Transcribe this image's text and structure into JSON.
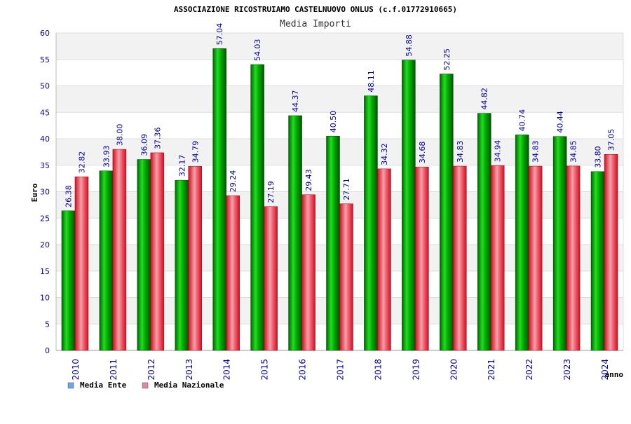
{
  "chart_data": {
    "type": "bar",
    "title": "ASSOCIAZIONE RICOSTRUIAMO CASTELNUOVO ONLUS (c.f.01772910665)",
    "subtitle": "Media Importi",
    "xlabel": "anno",
    "ylabel": "Euro",
    "ylim": [
      0,
      60
    ],
    "yticks": [
      0,
      5,
      10,
      15,
      20,
      25,
      30,
      35,
      40,
      45,
      50,
      55,
      60
    ],
    "grid": true,
    "legend_position": "bottom-left",
    "categories": [
      "2010",
      "2011",
      "2012",
      "2013",
      "2014",
      "2015",
      "2016",
      "2017",
      "2018",
      "2019",
      "2020",
      "2021",
      "2022",
      "2023",
      "2024"
    ],
    "series": [
      {
        "name": "Media Ente",
        "color": "#00bb00",
        "legend_color": "#66a8e8",
        "values": [
          26.38,
          33.93,
          36.09,
          32.17,
          57.04,
          54.03,
          44.37,
          40.5,
          48.11,
          54.88,
          52.25,
          44.82,
          40.74,
          40.44,
          33.8
        ],
        "labels": [
          "26.38",
          "33.93",
          "36.09",
          "32.17",
          "57.04",
          "54.03",
          "44.37",
          "40.50",
          "48.11",
          "54.88",
          "52.25",
          "44.82",
          "40.74",
          "40.44",
          "33.80"
        ]
      },
      {
        "name": "Media Nazionale",
        "color": "#ee3344",
        "legend_color": "#dd88aa",
        "values": [
          32.82,
          38.0,
          37.36,
          34.79,
          29.24,
          27.19,
          29.43,
          27.71,
          34.32,
          34.68,
          34.83,
          34.94,
          34.83,
          34.85,
          37.05
        ],
        "labels": [
          "32.82",
          "38.00",
          "37.36",
          "34.79",
          "29.24",
          "27.19",
          "29.43",
          "27.71",
          "34.32",
          "34.68",
          "34.83",
          "34.94",
          "34.83",
          "34.85",
          "37.05"
        ]
      }
    ]
  }
}
